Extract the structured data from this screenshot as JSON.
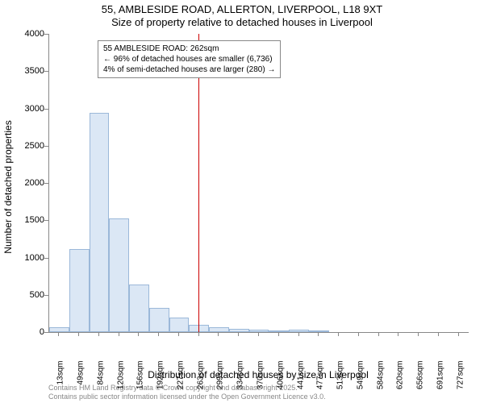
{
  "title_line1": "55, AMBLESIDE ROAD, ALLERTON, LIVERPOOL, L18 9XT",
  "title_line2": "Size of property relative to detached houses in Liverpool",
  "ylabel": "Number of detached properties",
  "xlabel": "Distribution of detached houses by size in Liverpool",
  "footer1": "Contains HM Land Registry data © Crown copyright and database right 2025.",
  "footer2": "Contains public sector information licensed under the Open Government Licence v3.0.",
  "annotation": {
    "line1": "55 AMBLESIDE ROAD: 262sqm",
    "line2": "← 96% of detached houses are smaller (6,736)",
    "line3": "4% of semi-detached houses are larger (280) →"
  },
  "chart": {
    "type": "histogram",
    "background_color": "#ffffff",
    "bar_fill": "#dbe7f5",
    "bar_stroke": "#9bb8d9",
    "axis_color": "#888888",
    "marker_color": "#cc0000",
    "marker_x_value": 262,
    "ylim": [
      0,
      4000
    ],
    "ytick_step": 500,
    "yticks": [
      0,
      500,
      1000,
      1500,
      2000,
      2500,
      3000,
      3500,
      4000
    ],
    "xtick_labels": [
      "13sqm",
      "49sqm",
      "84sqm",
      "120sqm",
      "156sqm",
      "192sqm",
      "227sqm",
      "263sqm",
      "299sqm",
      "334sqm",
      "370sqm",
      "406sqm",
      "441sqm",
      "477sqm",
      "513sqm",
      "549sqm",
      "584sqm",
      "620sqm",
      "656sqm",
      "691sqm",
      "727sqm"
    ],
    "bars": [
      {
        "x": 13,
        "value": 70
      },
      {
        "x": 49,
        "value": 1110
      },
      {
        "x": 84,
        "value": 2940
      },
      {
        "x": 120,
        "value": 1520
      },
      {
        "x": 156,
        "value": 640
      },
      {
        "x": 192,
        "value": 320
      },
      {
        "x": 227,
        "value": 190
      },
      {
        "x": 263,
        "value": 100
      },
      {
        "x": 299,
        "value": 60
      },
      {
        "x": 334,
        "value": 45
      },
      {
        "x": 370,
        "value": 30
      },
      {
        "x": 406,
        "value": 22
      },
      {
        "x": 441,
        "value": 28
      },
      {
        "x": 477,
        "value": 14
      },
      {
        "x": 513,
        "value": 0
      },
      {
        "x": 549,
        "value": 0
      },
      {
        "x": 584,
        "value": 0
      },
      {
        "x": 620,
        "value": 0
      },
      {
        "x": 656,
        "value": 0
      },
      {
        "x": 691,
        "value": 0
      },
      {
        "x": 727,
        "value": 0
      }
    ],
    "title_fontsize": 13,
    "label_fontsize": 12,
    "tick_fontsize": 11,
    "footer_fontsize": 9,
    "annotation_fontsize": 10
  }
}
